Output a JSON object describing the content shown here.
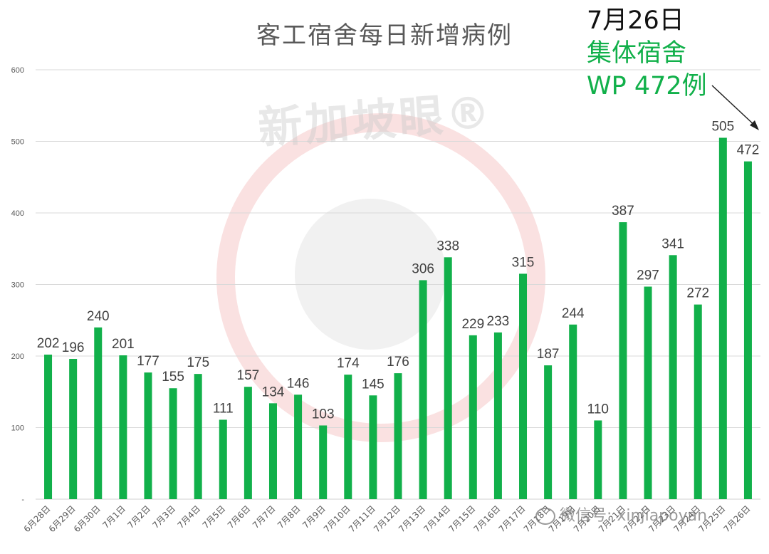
{
  "chart_data": {
    "type": "bar",
    "title": "客工宿舍每日新增病例",
    "categories": [
      "6月28日",
      "6月29日",
      "6月30日",
      "7月1日",
      "7月2日",
      "7月3日",
      "7月4日",
      "7月5日",
      "7月6日",
      "7月7日",
      "7月8日",
      "7月9日",
      "7月10日",
      "7月11日",
      "7月12日",
      "7月13日",
      "7月14日",
      "7月15日",
      "7月16日",
      "7月17日",
      "7月18日",
      "7月19日",
      "7月20日",
      "7月21日",
      "7月22日",
      "7月23日",
      "7月24日",
      "7月25日",
      "7月26日"
    ],
    "values": [
      202,
      196,
      240,
      201,
      177,
      155,
      175,
      111,
      157,
      134,
      146,
      103,
      174,
      145,
      176,
      306,
      338,
      229,
      233,
      315,
      187,
      244,
      110,
      387,
      297,
      341,
      272,
      505,
      472
    ],
    "ylim": [
      0,
      600
    ],
    "yticks": [
      "-",
      "100",
      "200",
      "300",
      "400",
      "500",
      "600"
    ],
    "grid": true,
    "bar_color": "#11b04a",
    "annotation": {
      "date": "7月26日",
      "line2": "集体宿舍",
      "line3": "WP 472例"
    }
  },
  "watermark": {
    "brand": "新加坡眼®",
    "wechat": "微信号: xinjiapoyan"
  }
}
